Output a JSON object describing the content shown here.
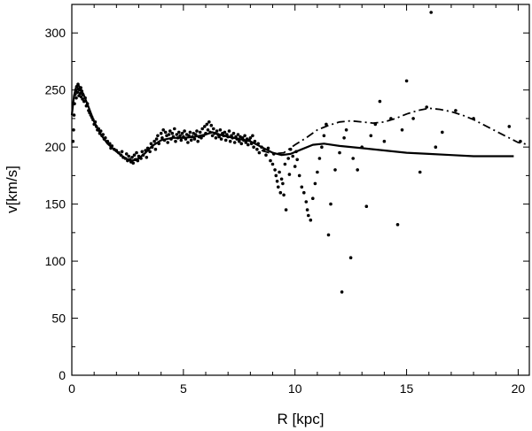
{
  "chart_data": {
    "type": "scatter",
    "title": "",
    "xlabel": "R [kpc]",
    "ylabel": "v[km/s]",
    "xlim": [
      0,
      20.5
    ],
    "ylim": [
      0,
      325
    ],
    "x_ticks_major": [
      0,
      5,
      10,
      15,
      20
    ],
    "x_ticks_minor": [
      1,
      2,
      3,
      4,
      6,
      7,
      8,
      9,
      11,
      12,
      13,
      14,
      16,
      17,
      18,
      19
    ],
    "y_ticks_major": [
      0,
      50,
      100,
      150,
      200,
      250,
      300
    ],
    "y_ticks_minor": [
      25,
      75,
      125,
      175,
      225,
      275
    ],
    "grid": false,
    "legend": "none",
    "series": [
      {
        "style": "points",
        "points": [
          [
            0.05,
            205
          ],
          [
            0.08,
            215
          ],
          [
            0.1,
            228
          ],
          [
            0.12,
            238
          ],
          [
            0.15,
            246
          ],
          [
            0.18,
            250
          ],
          [
            0.2,
            243
          ],
          [
            0.22,
            253
          ],
          [
            0.25,
            248
          ],
          [
            0.28,
            255
          ],
          [
            0.3,
            251
          ],
          [
            0.32,
            245
          ],
          [
            0.35,
            250
          ],
          [
            0.38,
            247
          ],
          [
            0.4,
            252
          ],
          [
            0.42,
            244
          ],
          [
            0.45,
            249
          ],
          [
            0.48,
            242
          ],
          [
            0.5,
            246
          ],
          [
            0.55,
            240
          ],
          [
            0.6,
            243
          ],
          [
            0.65,
            236
          ],
          [
            0.7,
            238
          ],
          [
            0.75,
            232
          ],
          [
            0.8,
            230
          ],
          [
            0.85,
            228
          ],
          [
            0.9,
            226
          ],
          [
            0.95,
            224
          ],
          [
            1.0,
            220
          ],
          [
            1.05,
            222
          ],
          [
            1.1,
            218
          ],
          [
            1.15,
            215
          ],
          [
            1.2,
            216
          ],
          [
            1.25,
            212
          ],
          [
            1.3,
            214
          ],
          [
            1.35,
            210
          ],
          [
            1.4,
            211
          ],
          [
            1.45,
            207
          ],
          [
            1.5,
            208
          ],
          [
            1.6,
            205
          ],
          [
            1.7,
            203
          ],
          [
            1.75,
            199
          ],
          [
            1.8,
            201
          ],
          [
            1.9,
            198
          ],
          [
            2.0,
            197
          ],
          [
            2.1,
            195
          ],
          [
            2.2,
            193
          ],
          [
            2.25,
            196
          ],
          [
            2.3,
            191
          ],
          [
            2.4,
            190
          ],
          [
            2.45,
            194
          ],
          [
            2.5,
            188
          ],
          [
            2.55,
            192
          ],
          [
            2.6,
            189
          ],
          [
            2.65,
            187
          ],
          [
            2.7,
            191
          ],
          [
            2.75,
            186
          ],
          [
            2.8,
            193
          ],
          [
            2.85,
            189
          ],
          [
            2.9,
            195
          ],
          [
            2.95,
            188
          ],
          [
            3.0,
            192
          ],
          [
            3.1,
            190
          ],
          [
            3.15,
            196
          ],
          [
            3.2,
            193
          ],
          [
            3.3,
            197
          ],
          [
            3.35,
            191
          ],
          [
            3.4,
            199
          ],
          [
            3.5,
            196
          ],
          [
            3.55,
            203
          ],
          [
            3.6,
            200
          ],
          [
            3.7,
            205
          ],
          [
            3.75,
            198
          ],
          [
            3.8,
            207
          ],
          [
            3.85,
            210
          ],
          [
            3.9,
            203
          ],
          [
            4.0,
            212
          ],
          [
            4.05,
            208
          ],
          [
            4.1,
            215
          ],
          [
            4.15,
            206
          ],
          [
            4.2,
            213
          ],
          [
            4.25,
            210
          ],
          [
            4.3,
            204
          ],
          [
            4.35,
            211
          ],
          [
            4.4,
            214
          ],
          [
            4.45,
            207
          ],
          [
            4.5,
            212
          ],
          [
            4.55,
            209
          ],
          [
            4.6,
            216
          ],
          [
            4.65,
            205
          ],
          [
            4.7,
            211
          ],
          [
            4.75,
            208
          ],
          [
            4.8,
            213
          ],
          [
            4.85,
            210
          ],
          [
            4.9,
            206
          ],
          [
            4.95,
            212
          ],
          [
            5.0,
            209
          ],
          [
            5.05,
            214
          ],
          [
            5.1,
            207
          ],
          [
            5.15,
            211
          ],
          [
            5.2,
            204
          ],
          [
            5.25,
            210
          ],
          [
            5.3,
            213
          ],
          [
            5.35,
            206
          ],
          [
            5.4,
            209
          ],
          [
            5.45,
            212
          ],
          [
            5.5,
            207
          ],
          [
            5.55,
            211
          ],
          [
            5.6,
            214
          ],
          [
            5.65,
            205
          ],
          [
            5.7,
            209
          ],
          [
            5.75,
            213
          ],
          [
            5.8,
            208
          ],
          [
            5.85,
            216
          ],
          [
            5.9,
            210
          ],
          [
            5.95,
            218
          ],
          [
            6.0,
            212
          ],
          [
            6.05,
            220
          ],
          [
            6.1,
            215
          ],
          [
            6.15,
            222
          ],
          [
            6.2,
            213
          ],
          [
            6.25,
            219
          ],
          [
            6.3,
            210
          ],
          [
            6.35,
            216
          ],
          [
            6.4,
            212
          ],
          [
            6.45,
            208
          ],
          [
            6.5,
            214
          ],
          [
            6.55,
            211
          ],
          [
            6.6,
            209
          ],
          [
            6.65,
            215
          ],
          [
            6.7,
            207
          ],
          [
            6.75,
            212
          ],
          [
            6.8,
            210
          ],
          [
            6.85,
            213
          ],
          [
            6.9,
            206
          ],
          [
            6.95,
            211
          ],
          [
            7.0,
            209
          ],
          [
            7.05,
            214
          ],
          [
            7.1,
            205
          ],
          [
            7.15,
            210
          ],
          [
            7.2,
            208
          ],
          [
            7.25,
            212
          ],
          [
            7.3,
            204
          ],
          [
            7.35,
            209
          ],
          [
            7.4,
            207
          ],
          [
            7.45,
            211
          ],
          [
            7.5,
            205
          ],
          [
            7.55,
            209
          ],
          [
            7.6,
            203
          ],
          [
            7.65,
            208
          ],
          [
            7.7,
            206
          ],
          [
            7.75,
            210
          ],
          [
            7.8,
            204
          ],
          [
            7.85,
            207
          ],
          [
            7.9,
            202
          ],
          [
            7.95,
            206
          ],
          [
            8.0,
            208
          ],
          [
            8.05,
            203
          ],
          [
            8.1,
            210
          ],
          [
            8.15,
            200
          ],
          [
            8.2,
            205
          ],
          [
            8.3,
            198
          ],
          [
            8.35,
            203
          ],
          [
            8.4,
            195
          ],
          [
            8.5,
            200
          ],
          [
            8.6,
            197
          ],
          [
            8.7,
            193
          ],
          [
            8.8,
            199
          ],
          [
            8.9,
            188
          ],
          [
            9.0,
            185
          ],
          [
            9.05,
            194
          ],
          [
            9.1,
            180
          ],
          [
            9.15,
            175
          ],
          [
            9.2,
            170
          ],
          [
            9.25,
            165
          ],
          [
            9.3,
            178
          ],
          [
            9.35,
            160
          ],
          [
            9.4,
            172
          ],
          [
            9.45,
            168
          ],
          [
            9.5,
            158
          ],
          [
            9.55,
            185
          ],
          [
            9.6,
            145
          ],
          [
            9.7,
            190
          ],
          [
            9.75,
            176
          ],
          [
            9.8,
            198
          ],
          [
            9.9,
            192
          ],
          [
            10.0,
            183
          ],
          [
            10.05,
            196
          ],
          [
            10.1,
            189
          ],
          [
            10.2,
            175
          ],
          [
            10.3,
            165
          ],
          [
            10.4,
            160
          ],
          [
            10.5,
            152
          ],
          [
            10.55,
            145
          ],
          [
            10.6,
            140
          ],
          [
            10.7,
            136
          ],
          [
            10.8,
            155
          ],
          [
            10.9,
            168
          ],
          [
            11.0,
            178
          ],
          [
            11.1,
            190
          ],
          [
            11.2,
            200
          ],
          [
            11.3,
            210
          ],
          [
            11.4,
            220
          ],
          [
            11.5,
            123
          ],
          [
            11.6,
            150
          ],
          [
            11.8,
            180
          ],
          [
            12.0,
            195
          ],
          [
            12.1,
            73
          ],
          [
            12.2,
            208
          ],
          [
            12.3,
            215
          ],
          [
            12.5,
            103
          ],
          [
            12.6,
            190
          ],
          [
            12.8,
            180
          ],
          [
            13.0,
            200
          ],
          [
            13.2,
            148
          ],
          [
            13.4,
            210
          ],
          [
            13.6,
            220
          ],
          [
            13.8,
            240
          ],
          [
            14.0,
            205
          ],
          [
            14.3,
            225
          ],
          [
            14.6,
            132
          ],
          [
            14.8,
            215
          ],
          [
            15.0,
            258
          ],
          [
            15.3,
            225
          ],
          [
            15.6,
            178
          ],
          [
            15.9,
            235
          ],
          [
            16.1,
            318
          ],
          [
            16.3,
            200
          ],
          [
            16.6,
            213
          ],
          [
            17.2,
            232
          ],
          [
            18.0,
            225
          ],
          [
            19.6,
            218
          ],
          [
            20.1,
            205
          ]
        ]
      },
      {
        "style": "solid",
        "points": [
          [
            0.0,
            228
          ],
          [
            0.1,
            245
          ],
          [
            0.2,
            253
          ],
          [
            0.3,
            254
          ],
          [
            0.4,
            251
          ],
          [
            0.55,
            245
          ],
          [
            0.75,
            235
          ],
          [
            1.0,
            222
          ],
          [
            1.3,
            211
          ],
          [
            1.6,
            203
          ],
          [
            2.0,
            196
          ],
          [
            2.4,
            190
          ],
          [
            2.7,
            188
          ],
          [
            3.0,
            190
          ],
          [
            3.3,
            195
          ],
          [
            3.6,
            201
          ],
          [
            4.0,
            206
          ],
          [
            4.5,
            208
          ],
          [
            5.0,
            208
          ],
          [
            5.5,
            209
          ],
          [
            6.0,
            211
          ],
          [
            6.3,
            213
          ],
          [
            6.6,
            211
          ],
          [
            7.0,
            209
          ],
          [
            7.5,
            207
          ],
          [
            8.0,
            205
          ],
          [
            8.5,
            200
          ],
          [
            9.0,
            195
          ],
          [
            9.4,
            193
          ],
          [
            9.8,
            194
          ],
          [
            10.3,
            198
          ],
          [
            10.8,
            202
          ],
          [
            11.3,
            203
          ],
          [
            12.0,
            201
          ],
          [
            13.0,
            199
          ],
          [
            14.0,
            197
          ],
          [
            15.0,
            195
          ],
          [
            16.0,
            194
          ],
          [
            17.0,
            193
          ],
          [
            18.0,
            192
          ],
          [
            19.0,
            192
          ],
          [
            19.8,
            192
          ]
        ]
      },
      {
        "style": "dash-dot",
        "points": [
          [
            8.5,
            197
          ],
          [
            9.0,
            194
          ],
          [
            9.5,
            195
          ],
          [
            10.0,
            202
          ],
          [
            10.5,
            208
          ],
          [
            11.0,
            215
          ],
          [
            11.5,
            219
          ],
          [
            12.0,
            222
          ],
          [
            12.5,
            223
          ],
          [
            13.0,
            222
          ],
          [
            13.5,
            221
          ],
          [
            14.0,
            222
          ],
          [
            14.5,
            225
          ],
          [
            15.0,
            229
          ],
          [
            15.5,
            232
          ],
          [
            16.0,
            234
          ],
          [
            16.5,
            233
          ],
          [
            17.0,
            231
          ],
          [
            17.5,
            228
          ],
          [
            18.0,
            224
          ],
          [
            18.5,
            219
          ],
          [
            19.0,
            214
          ],
          [
            19.5,
            209
          ],
          [
            20.0,
            204
          ],
          [
            20.5,
            202
          ]
        ]
      }
    ]
  }
}
